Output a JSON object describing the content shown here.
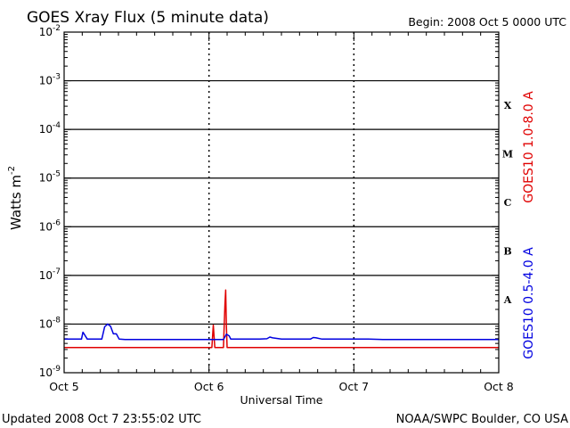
{
  "header": {
    "title": "GOES Xray Flux (5 minute data)",
    "begin": "Begin:  2008 Oct 5 0000 UTC"
  },
  "footer": {
    "updated": "Updated 2008 Oct  7 23:55:02 UTC",
    "credit": "NOAA/SWPC Boulder, CO USA"
  },
  "chart_data": {
    "type": "line",
    "title": "GOES Xray Flux (5 minute data)",
    "xlabel": "Universal Time",
    "ylabel": "Watts m-2",
    "yscale": "log",
    "ylim": [
      1e-09,
      0.01
    ],
    "xlim_days": [
      0,
      3
    ],
    "x_tick_labels": [
      "Oct 5",
      "Oct 6",
      "Oct 7",
      "Oct 8"
    ],
    "y_tick_labels": [
      "10-9",
      "10-8",
      "10-7",
      "10-6",
      "10-5",
      "10-4",
      "10-3",
      "10-2"
    ],
    "flare_classes": [
      "A",
      "B",
      "C",
      "M",
      "X"
    ],
    "grid": true,
    "colors": {
      "long_channel": "#e00000",
      "short_channel": "#0000e0"
    },
    "series": [
      {
        "name": "GOES10 1.0-8.0 A",
        "color": "#e00000",
        "x_days": [
          0.0,
          0.99,
          1.02,
          1.03,
          1.04,
          1.05,
          1.1,
          1.105,
          1.11,
          1.115,
          1.12,
          1.125,
          1.13,
          1.14,
          1.2,
          2.0,
          3.0
        ],
        "values": [
          3.3e-09,
          3.3e-09,
          3.3e-09,
          9.5e-09,
          3.3e-09,
          3.3e-09,
          3.3e-09,
          9e-09,
          2.6e-08,
          5e-08,
          9e-09,
          3.3e-09,
          3.3e-09,
          3.3e-09,
          3.3e-09,
          3.3e-09,
          3.3e-09
        ]
      },
      {
        "name": "GOES10 0.5-4.0 A",
        "color": "#0000e0",
        "x_days": [
          0.0,
          0.12,
          0.13,
          0.14,
          0.16,
          0.18,
          0.22,
          0.26,
          0.28,
          0.3,
          0.32,
          0.34,
          0.36,
          0.38,
          0.42,
          0.55,
          0.8,
          1.0,
          1.1,
          1.12,
          1.14,
          1.15,
          1.16,
          1.2,
          1.35,
          1.4,
          1.42,
          1.44,
          1.5,
          1.7,
          1.72,
          1.74,
          1.78,
          1.9,
          2.1,
          2.2,
          2.4,
          2.6,
          3.0
        ],
        "values": [
          4.9e-09,
          4.9e-09,
          6.8e-09,
          6.1e-09,
          4.9e-09,
          4.9e-09,
          4.9e-09,
          4.9e-09,
          8.8e-09,
          1e-08,
          9e-09,
          6.3e-09,
          6.3e-09,
          4.9e-09,
          4.8e-09,
          4.8e-09,
          4.8e-09,
          4.8e-09,
          4.8e-09,
          6.2e-09,
          5.7e-09,
          4.9e-09,
          4.9e-09,
          4.9e-09,
          4.9e-09,
          5e-09,
          5.4e-09,
          5.2e-09,
          4.9e-09,
          4.9e-09,
          5.3e-09,
          5.2e-09,
          4.9e-09,
          4.9e-09,
          4.9e-09,
          4.8e-09,
          4.8e-09,
          4.8e-09,
          4.8e-09
        ]
      }
    ]
  }
}
